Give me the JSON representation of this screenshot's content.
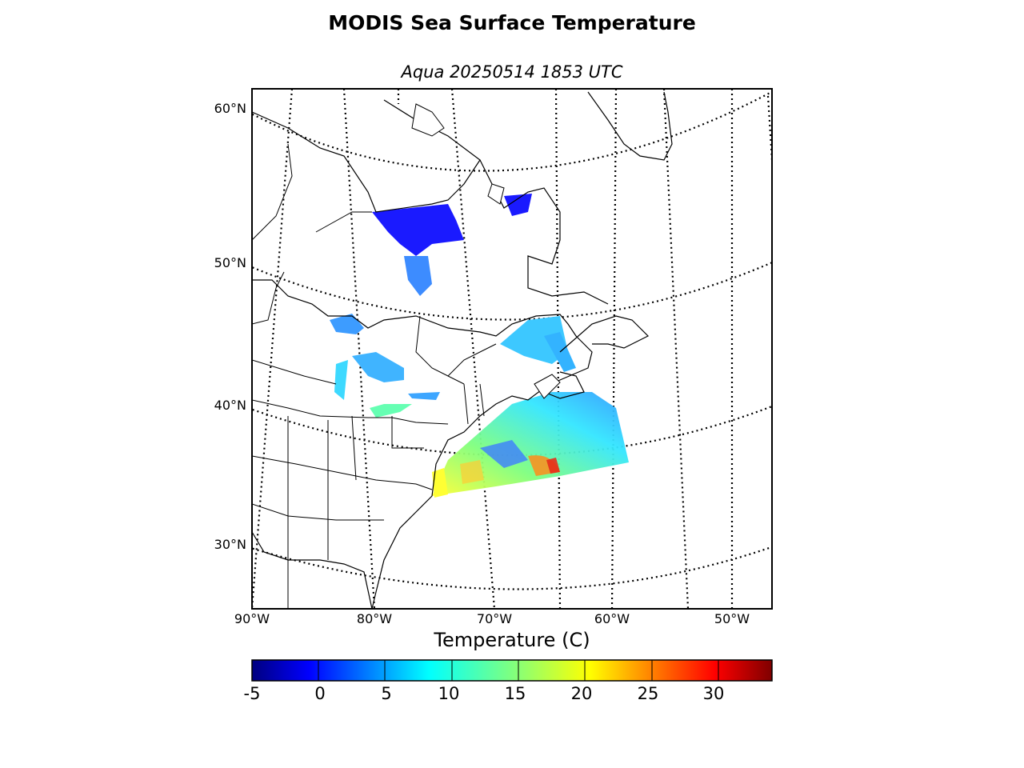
{
  "figure": {
    "title": "MODIS Sea Surface Temperature",
    "subtitle": "Aqua 20250514 1853 UTC"
  },
  "map": {
    "lat_labels": [
      "60°N",
      "50°N",
      "40°N",
      "30°N"
    ],
    "lon_labels": [
      "90°W",
      "80°W",
      "70°W",
      "60°W",
      "50°W"
    ],
    "graticule_style": "dotted",
    "projection": "conic"
  },
  "colorbar": {
    "label": "Temperature (C)",
    "ticks": [
      "-5",
      "0",
      "5",
      "10",
      "15",
      "20",
      "25",
      "30"
    ],
    "range": [
      -5,
      34
    ],
    "colormap": "jet",
    "colors": [
      "#00007f",
      "#0000ff",
      "#007fff",
      "#00ffff",
      "#7fff7f",
      "#ffff00",
      "#ff7f00",
      "#ff0000",
      "#7f0000"
    ]
  }
}
